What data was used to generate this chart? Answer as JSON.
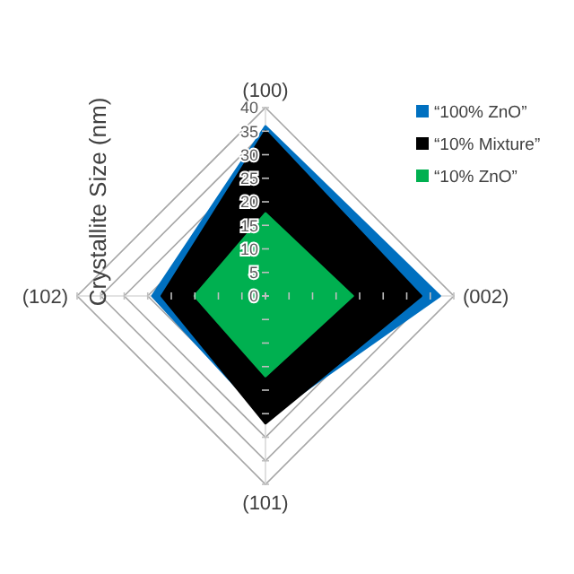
{
  "chart_data": {
    "type": "radar",
    "ylabel": "Crystallite Size (nm)",
    "categories": [
      "(100)",
      "(002)",
      "(101)",
      "(102)"
    ],
    "ylim": [
      0,
      40
    ],
    "yticks": [
      0,
      5,
      10,
      15,
      20,
      25,
      30,
      35,
      40
    ],
    "legend": "top right",
    "series": [
      {
        "name": "“100% ZnO”",
        "color": "#0070c0",
        "values": [
          36,
          37,
          26,
          24
        ]
      },
      {
        "name": "“10% Mixture”",
        "color": "#000000",
        "values": [
          35,
          33,
          27,
          22
        ]
      },
      {
        "name": "“10% ZnO”",
        "color": "#00b050",
        "values": [
          17.5,
          18.5,
          17,
          15
        ]
      }
    ]
  }
}
